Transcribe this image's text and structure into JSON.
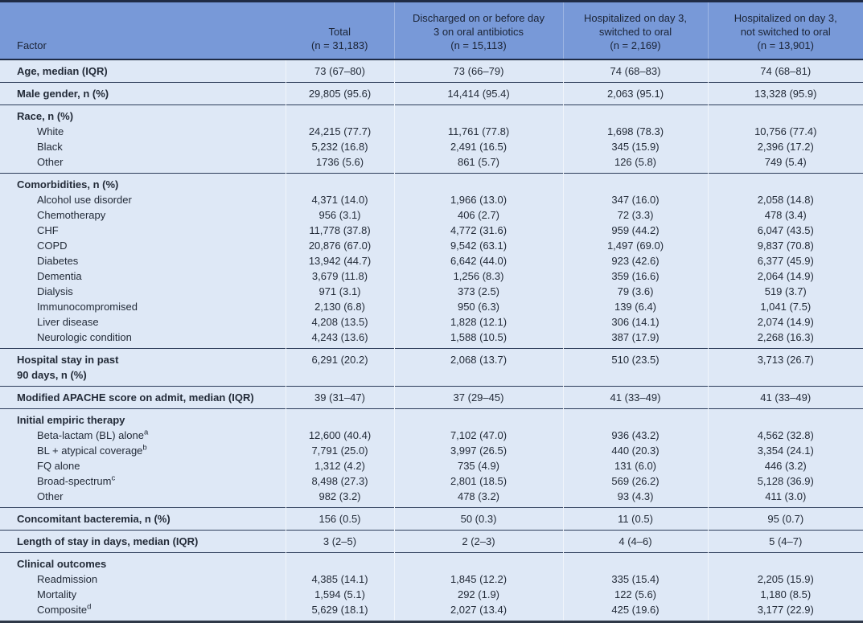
{
  "colors": {
    "header_bg": "#7899d8",
    "body_bg": "#dee8f6",
    "rule_dark": "#1f2b45",
    "text": "#232b38"
  },
  "table": {
    "columns": [
      {
        "label": "Factor"
      },
      {
        "label": "Total\n(n = 31,183)"
      },
      {
        "label": "Discharged on or before day\n3 on oral antibiotics\n(n = 15,113)"
      },
      {
        "label": "Hospitalized on day 3,\nswitched to oral\n(n = 2,169)"
      },
      {
        "label": "Hospitalized on day 3,\nnot switched to oral\n(n = 13,901)"
      }
    ],
    "sections": [
      {
        "rows": [
          {
            "label": "Age, median (IQR)",
            "style": "factor",
            "values": [
              "73 (67–80)",
              "73 (66–79)",
              "74 (68–83)",
              "74 (68–81)"
            ]
          }
        ]
      },
      {
        "rows": [
          {
            "label": "Male gender, n (%)",
            "style": "factor",
            "values": [
              "29,805 (95.6)",
              "14,414 (95.4)",
              "2,063 (95.1)",
              "13,328 (95.9)"
            ]
          }
        ]
      },
      {
        "rows": [
          {
            "label": "Race, n (%)",
            "style": "factor",
            "values": [
              "",
              "",
              "",
              ""
            ]
          },
          {
            "label": "White",
            "style": "sub",
            "values": [
              "24,215 (77.7)",
              "11,761 (77.8)",
              "1,698 (78.3)",
              "10,756 (77.4)"
            ]
          },
          {
            "label": "Black",
            "style": "sub",
            "values": [
              "5,232 (16.8)",
              "2,491 (16.5)",
              "345 (15.9)",
              "2,396 (17.2)"
            ]
          },
          {
            "label": "Other",
            "style": "sub",
            "values": [
              "1736 (5.6)",
              "861 (5.7)",
              "126 (5.8)",
              "749 (5.4)"
            ]
          }
        ]
      },
      {
        "rows": [
          {
            "label": "Comorbidities, n (%)",
            "style": "factor",
            "values": [
              "",
              "",
              "",
              ""
            ]
          },
          {
            "label": "Alcohol use disorder",
            "style": "sub",
            "values": [
              "4,371 (14.0)",
              "1,966 (13.0)",
              "347 (16.0)",
              "2,058 (14.8)"
            ]
          },
          {
            "label": "Chemotherapy",
            "style": "sub",
            "values": [
              "956 (3.1)",
              "406 (2.7)",
              "72 (3.3)",
              "478 (3.4)"
            ]
          },
          {
            "label": "CHF",
            "style": "sub",
            "values": [
              "11,778 (37.8)",
              "4,772 (31.6)",
              "959 (44.2)",
              "6,047 (43.5)"
            ]
          },
          {
            "label": "COPD",
            "style": "sub",
            "values": [
              "20,876 (67.0)",
              "9,542 (63.1)",
              "1,497 (69.0)",
              "9,837 (70.8)"
            ]
          },
          {
            "label": "Diabetes",
            "style": "sub",
            "values": [
              "13,942 (44.7)",
              "6,642 (44.0)",
              "923 (42.6)",
              "6,377 (45.9)"
            ]
          },
          {
            "label": "Dementia",
            "style": "sub",
            "values": [
              "3,679 (11.8)",
              "1,256 (8.3)",
              "359 (16.6)",
              "2,064 (14.9)"
            ]
          },
          {
            "label": "Dialysis",
            "style": "sub",
            "values": [
              "971 (3.1)",
              "373 (2.5)",
              "79 (3.6)",
              "519 (3.7)"
            ]
          },
          {
            "label": "Immunocompromised",
            "style": "sub",
            "values": [
              "2,130 (6.8)",
              "950 (6.3)",
              "139 (6.4)",
              "1,041 (7.5)"
            ]
          },
          {
            "label": "Liver disease",
            "style": "sub",
            "values": [
              "4,208 (13.5)",
              "1,828 (12.1)",
              "306 (14.1)",
              "2,074 (14.9)"
            ]
          },
          {
            "label": "Neurologic condition",
            "style": "sub",
            "values": [
              "4,243 (13.6)",
              "1,588 (10.5)",
              "387 (17.9)",
              "2,268 (16.3)"
            ]
          }
        ]
      },
      {
        "rows": [
          {
            "label": "Hospital stay in past\n90 days, n (%)",
            "style": "factor",
            "values": [
              "6,291 (20.2)",
              "2,068 (13.7)",
              "510 (23.5)",
              "3,713 (26.7)"
            ]
          }
        ]
      },
      {
        "rows": [
          {
            "label": "Modified APACHE score on admit, median (IQR)",
            "style": "factor",
            "values": [
              "39 (31–47)",
              "37 (29–45)",
              "41 (33–49)",
              "41 (33–49)"
            ]
          }
        ]
      },
      {
        "rows": [
          {
            "label": "Initial empiric therapy",
            "style": "factor",
            "values": [
              "",
              "",
              "",
              ""
            ]
          },
          {
            "label": "Beta-lactam (BL) alone",
            "sup": "a",
            "style": "sub",
            "values": [
              "12,600 (40.4)",
              "7,102 (47.0)",
              "936 (43.2)",
              "4,562 (32.8)"
            ]
          },
          {
            "label": "BL + atypical coverage",
            "sup": "b",
            "style": "sub",
            "values": [
              "7,791 (25.0)",
              "3,997 (26.5)",
              "440 (20.3)",
              "3,354 (24.1)"
            ]
          },
          {
            "label": "FQ alone",
            "style": "sub",
            "values": [
              "1,312 (4.2)",
              "735 (4.9)",
              "131 (6.0)",
              "446 (3.2)"
            ]
          },
          {
            "label": "Broad-spectrum",
            "sup": "c",
            "style": "sub",
            "values": [
              "8,498 (27.3)",
              "2,801 (18.5)",
              "569 (26.2)",
              "5,128 (36.9)"
            ]
          },
          {
            "label": "Other",
            "style": "sub",
            "values": [
              "982 (3.2)",
              "478 (3.2)",
              "93 (4.3)",
              "411 (3.0)"
            ]
          }
        ]
      },
      {
        "rows": [
          {
            "label": "Concomitant bacteremia, n (%)",
            "style": "factor",
            "values": [
              "156 (0.5)",
              "50 (0.3)",
              "11 (0.5)",
              "95 (0.7)"
            ]
          }
        ]
      },
      {
        "rows": [
          {
            "label": "Length of stay in days, median (IQR)",
            "style": "factor",
            "values": [
              "3 (2–5)",
              "2 (2–3)",
              "4 (4–6)",
              "5 (4–7)"
            ]
          }
        ]
      },
      {
        "rows": [
          {
            "label": "Clinical outcomes",
            "style": "factor",
            "values": [
              "",
              "",
              "",
              ""
            ]
          },
          {
            "label": "Readmission",
            "style": "sub",
            "values": [
              "4,385 (14.1)",
              "1,845 (12.2)",
              "335 (15.4)",
              "2,205 (15.9)"
            ]
          },
          {
            "label": "Mortality",
            "style": "sub",
            "values": [
              "1,594 (5.1)",
              "292 (1.9)",
              "122 (5.6)",
              "1,180 (8.5)"
            ]
          },
          {
            "label": "Composite",
            "sup": "d",
            "style": "sub",
            "values": [
              "5,629 (18.1)",
              "2,027 (13.4)",
              "425 (19.6)",
              "3,177 (22.9)"
            ]
          }
        ]
      }
    ]
  }
}
